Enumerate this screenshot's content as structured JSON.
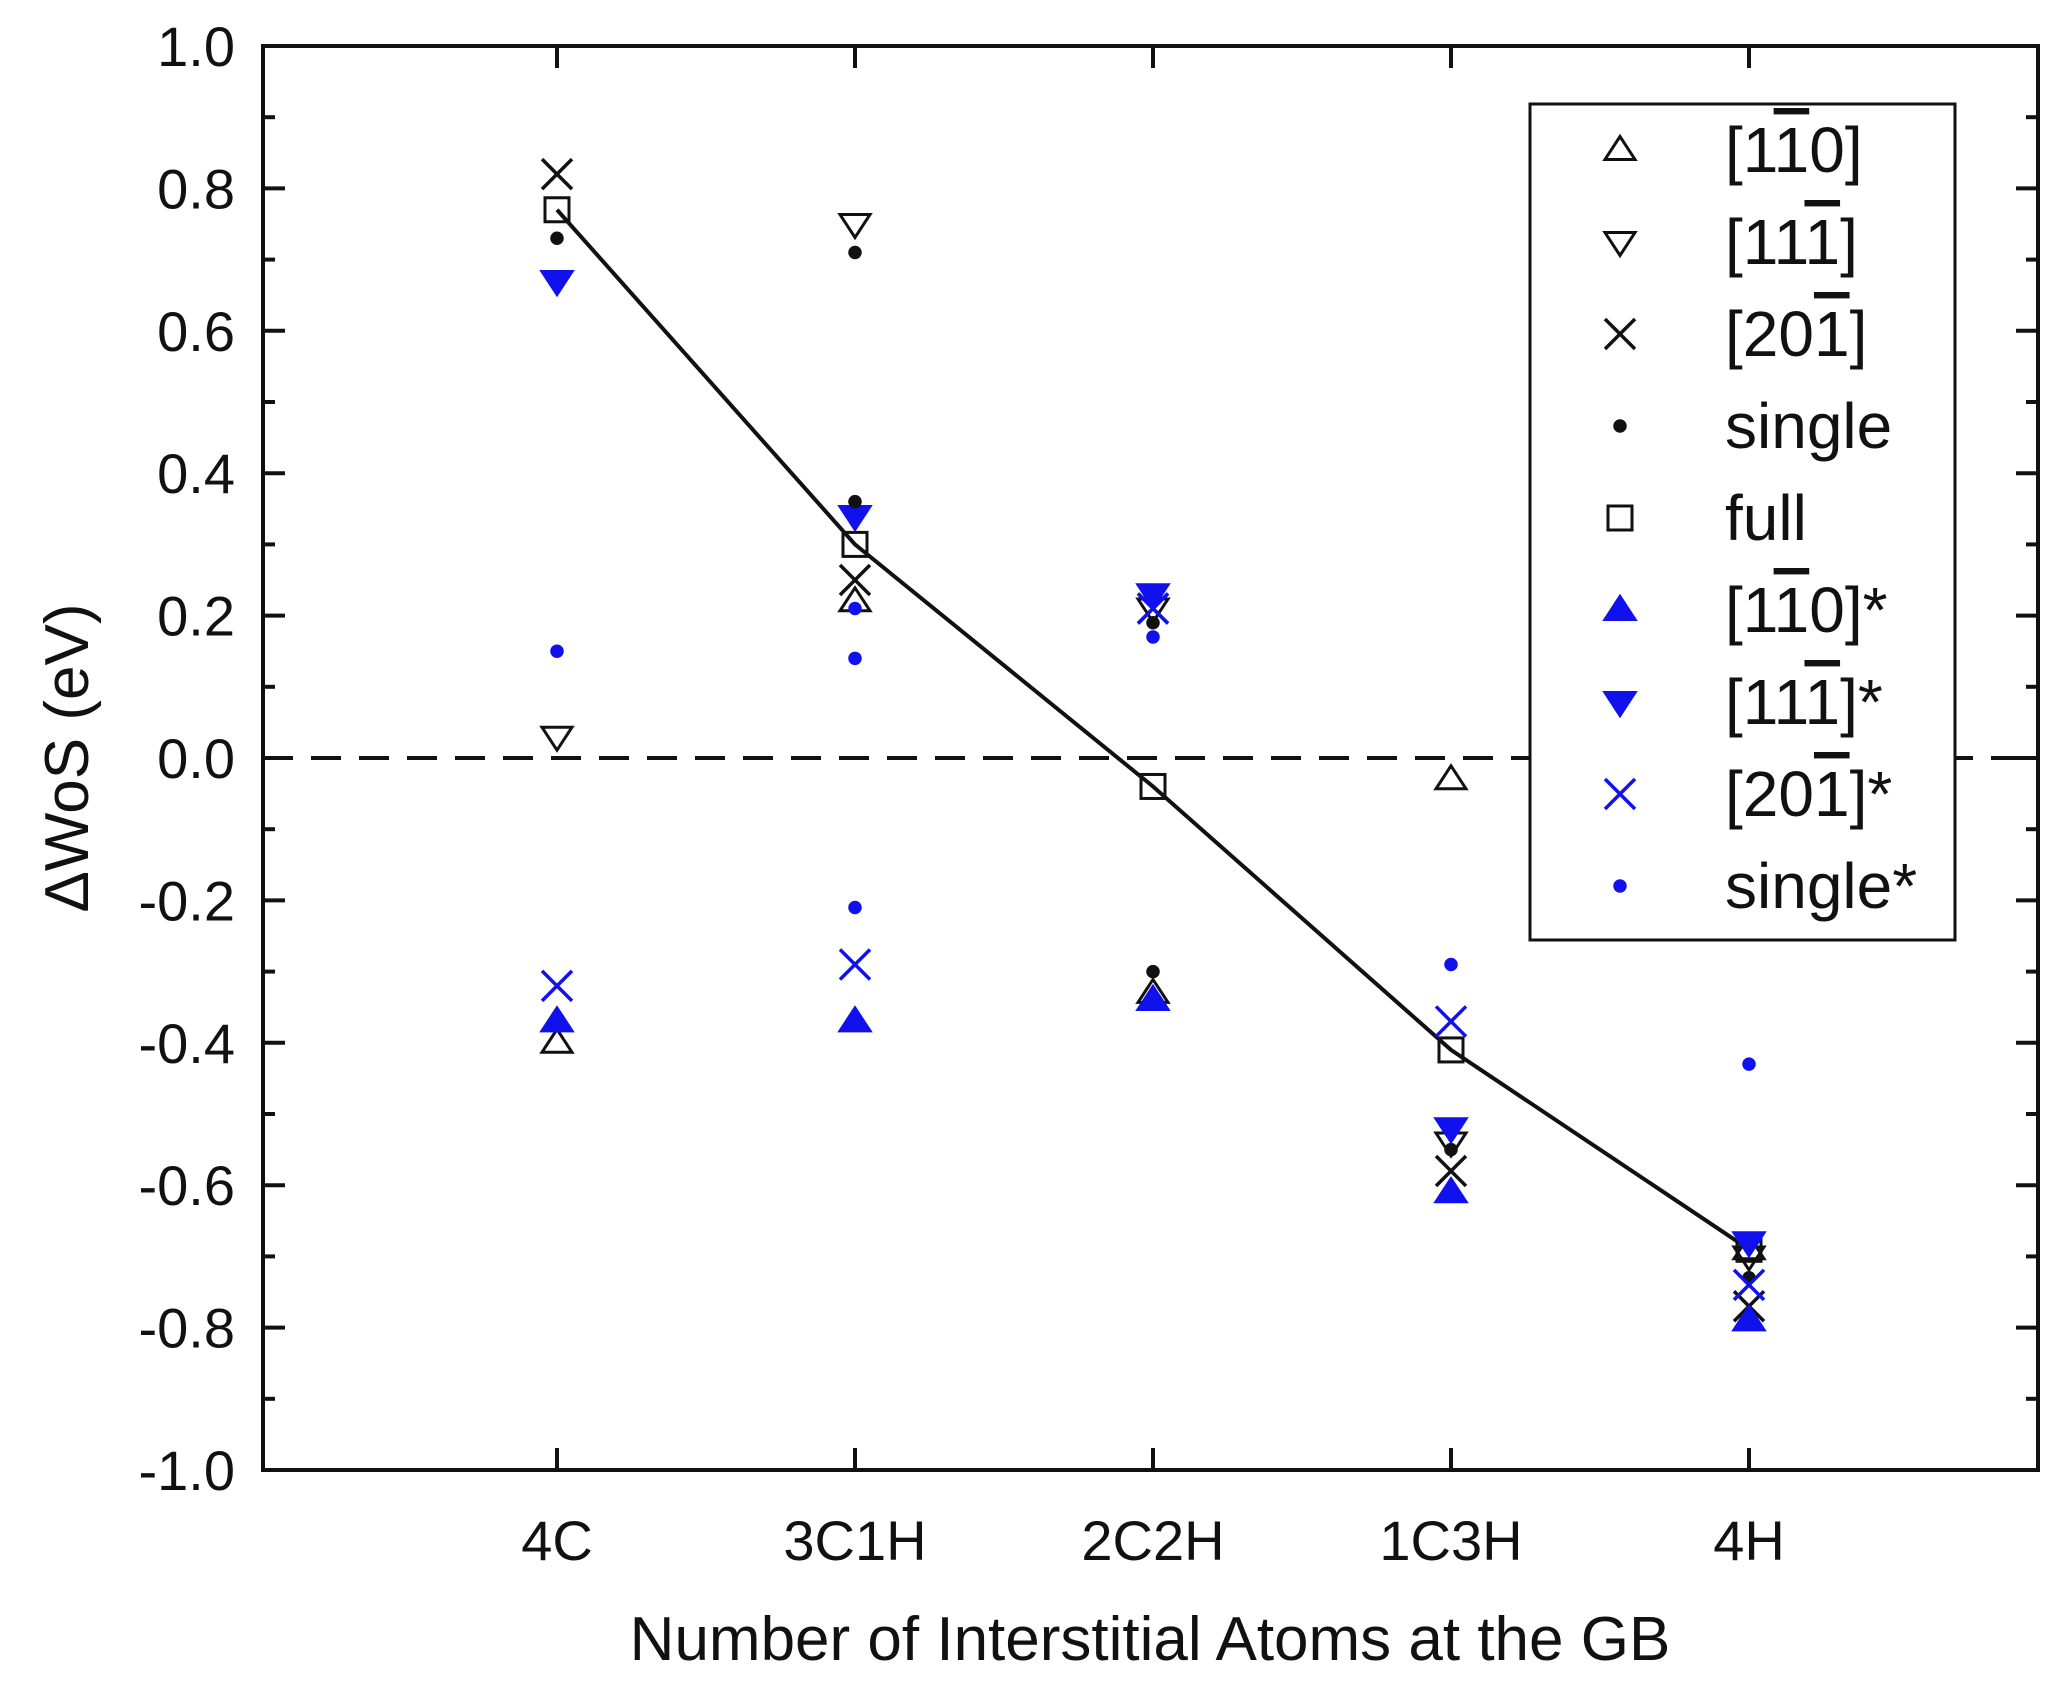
{
  "chart_data": {
    "type": "scatter",
    "title": "",
    "xlabel": "Number of Interstitial Atoms at the GB",
    "ylabel": "ΔWoS (eV)",
    "categories": [
      "4C",
      "3C1H",
      "2C2H",
      "1C3H",
      "4H"
    ],
    "ylim": [
      -1.0,
      1.0
    ],
    "yticks": [
      -1.0,
      -0.8,
      -0.6,
      -0.4,
      -0.2,
      0.0,
      0.2,
      0.4,
      0.6,
      0.8,
      1.0
    ],
    "ytick_labels": [
      "-1.0",
      "-0.8",
      "-0.6",
      "-0.4",
      "-0.2",
      "0.0",
      "0.2",
      "0.4",
      "0.6",
      "0.8",
      "1.0"
    ],
    "reference_line": {
      "y": 0.0,
      "style": "dashed"
    },
    "legend_position": "top-right",
    "colors": {
      "black": "#111111",
      "blue": "#1111ee"
    },
    "series": [
      {
        "name": "[1-10]",
        "label": {
          "pre": "[1",
          "bars": [
            "1"
          ],
          "mid": "",
          "bar2": "0",
          "post": "]"
        },
        "marker": "triangle-up-open",
        "color": "#111111",
        "values": [
          -0.4,
          0.22,
          -0.33,
          -0.03,
          -0.69
        ]
      },
      {
        "name": "[11-1]",
        "label": {
          "pre": "[11",
          "bars": [
            "1"
          ],
          "post": "]"
        },
        "marker": "triangle-down-open",
        "color": "#111111",
        "values": [
          0.03,
          0.75,
          0.21,
          -0.54,
          -0.7
        ]
      },
      {
        "name": "[20-1]",
        "label": {
          "pre": "[20",
          "bars": [
            "1"
          ],
          "post": "]"
        },
        "marker": "x",
        "color": "#111111",
        "values": [
          0.82,
          0.25,
          0.21,
          -0.58,
          -0.77
        ]
      },
      {
        "name": "single",
        "label": {
          "text": "single"
        },
        "marker": "dot",
        "color": "#111111",
        "values": [
          0.73,
          0.71,
          0.19,
          -0.55,
          -0.73
        ]
      },
      {
        "name": "full",
        "label": {
          "text": "full"
        },
        "marker": "square-open",
        "color": "#111111",
        "values": [
          0.77,
          0.3,
          -0.04,
          -0.41,
          -0.69
        ]
      },
      {
        "name": "[1-10]*",
        "label": {
          "pre": "[1",
          "bars": [
            "1"
          ],
          "mid": "",
          "bar2": "0",
          "post": "]*"
        },
        "marker": "triangle-up-filled",
        "color": "#1111ee",
        "values": [
          -0.37,
          -0.37,
          -0.34,
          -0.61,
          -0.79
        ]
      },
      {
        "name": "[11-1]*",
        "label": {
          "pre": "[11",
          "bars": [
            "1"
          ],
          "post": "]*"
        },
        "marker": "triangle-down-filled",
        "color": "#1111ee",
        "values": [
          0.67,
          0.34,
          0.23,
          -0.52,
          -0.68
        ]
      },
      {
        "name": "[20-1]*",
        "label": {
          "pre": "[20",
          "bars": [
            "1"
          ],
          "post": "]*"
        },
        "marker": "x",
        "color": "#1111ee",
        "values": [
          -0.32,
          -0.29,
          0.21,
          -0.37,
          -0.74
        ]
      },
      {
        "name": "single*",
        "label": {
          "text": "single*"
        },
        "marker": "dot",
        "color": "#1111ee",
        "values": [
          0.15,
          0.21,
          0.17,
          -0.29,
          -0.43
        ]
      }
    ],
    "extra_points": [
      {
        "series": "single*",
        "category": "3C1H",
        "value": 0.14
      },
      {
        "series": "single*",
        "category": "3C1H",
        "value": -0.21
      },
      {
        "series": "single",
        "category": "3C1H",
        "value": 0.36
      },
      {
        "series": "single",
        "category": "2C2H",
        "value": -0.3
      }
    ],
    "trend_line": {
      "series": "full",
      "style": "solid"
    }
  }
}
